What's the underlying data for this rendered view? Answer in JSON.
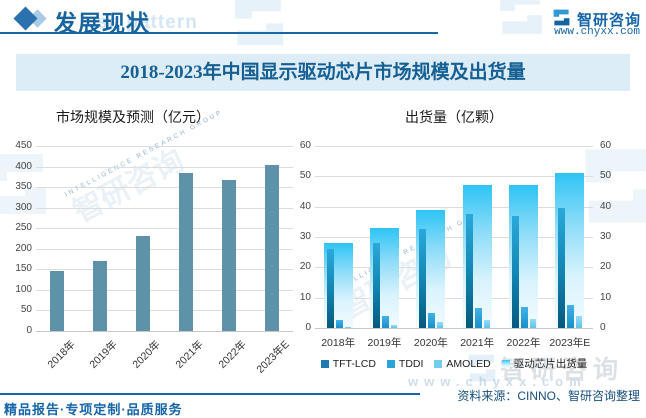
{
  "header": {
    "section_title": "发展现状",
    "brand": "智研咨询",
    "site": "www.chyxx.com"
  },
  "title": "2018-2023年中国显示驱动芯片市场规模及出货量",
  "chart_data": [
    {
      "type": "bar",
      "title": "市场规模及预测（亿元）",
      "categories": [
        "2018年",
        "2019年",
        "2020年",
        "2021年",
        "2022年",
        "2023年E"
      ],
      "values": [
        145,
        171,
        230,
        385,
        368,
        405
      ],
      "ylim": [
        0,
        450
      ],
      "ytick_step": 50,
      "bar_color": "#5e92a9",
      "grid": true,
      "legend": "none"
    },
    {
      "type": "bar",
      "variant": "grouped-with-total-background",
      "title": "出货量（亿颗）",
      "categories": [
        "2018年",
        "2019年",
        "2020年",
        "2021年",
        "2022年",
        "2023年E"
      ],
      "series": [
        {
          "name": "TFT-LCD",
          "role": "narrow",
          "values": [
            26,
            28,
            32.5,
            37.5,
            37,
            39.5
          ],
          "color": "#1b7aad",
          "gradient": [
            "#2aa9da",
            "#1387b6",
            "#05597d"
          ]
        },
        {
          "name": "TDDI",
          "role": "narrow",
          "values": [
            2.5,
            4,
            5,
            6.5,
            7,
            7.5
          ],
          "color": "#2aa3dc",
          "gradient": [
            "#3eb3e8",
            "#1b90c6"
          ]
        },
        {
          "name": "AMOLED",
          "role": "narrow",
          "values": [
            0.3,
            1,
            2,
            2.5,
            3,
            4
          ],
          "color": "#74ccf1",
          "gradient": [
            "#96dcf7",
            "#5fc3ec"
          ]
        },
        {
          "name": "驱动芯片出货量",
          "role": "total-background",
          "values": [
            28,
            33,
            39,
            47,
            47,
            51
          ],
          "color": "#a9e2fa",
          "gradient": [
            "#2ec4f4",
            "#8edcf8",
            "#d8f3fd",
            "#f3fbff"
          ]
        }
      ],
      "ylim": [
        0,
        60
      ],
      "ytick_step": 10,
      "dual_axis": true,
      "grid": true,
      "legend_position": "bottom"
    }
  ],
  "footer": {
    "tagline": "精品报告·专项定制·品质服务",
    "source": "资料来源：CINNO、智研咨询整理"
  },
  "watermarks": {
    "pattern_text": "se pattern",
    "brand_text": "智研咨询",
    "brand_sub": "INTELLIGENCE RESEARCH GROUP",
    "site_text": "www.chyxx.com"
  }
}
